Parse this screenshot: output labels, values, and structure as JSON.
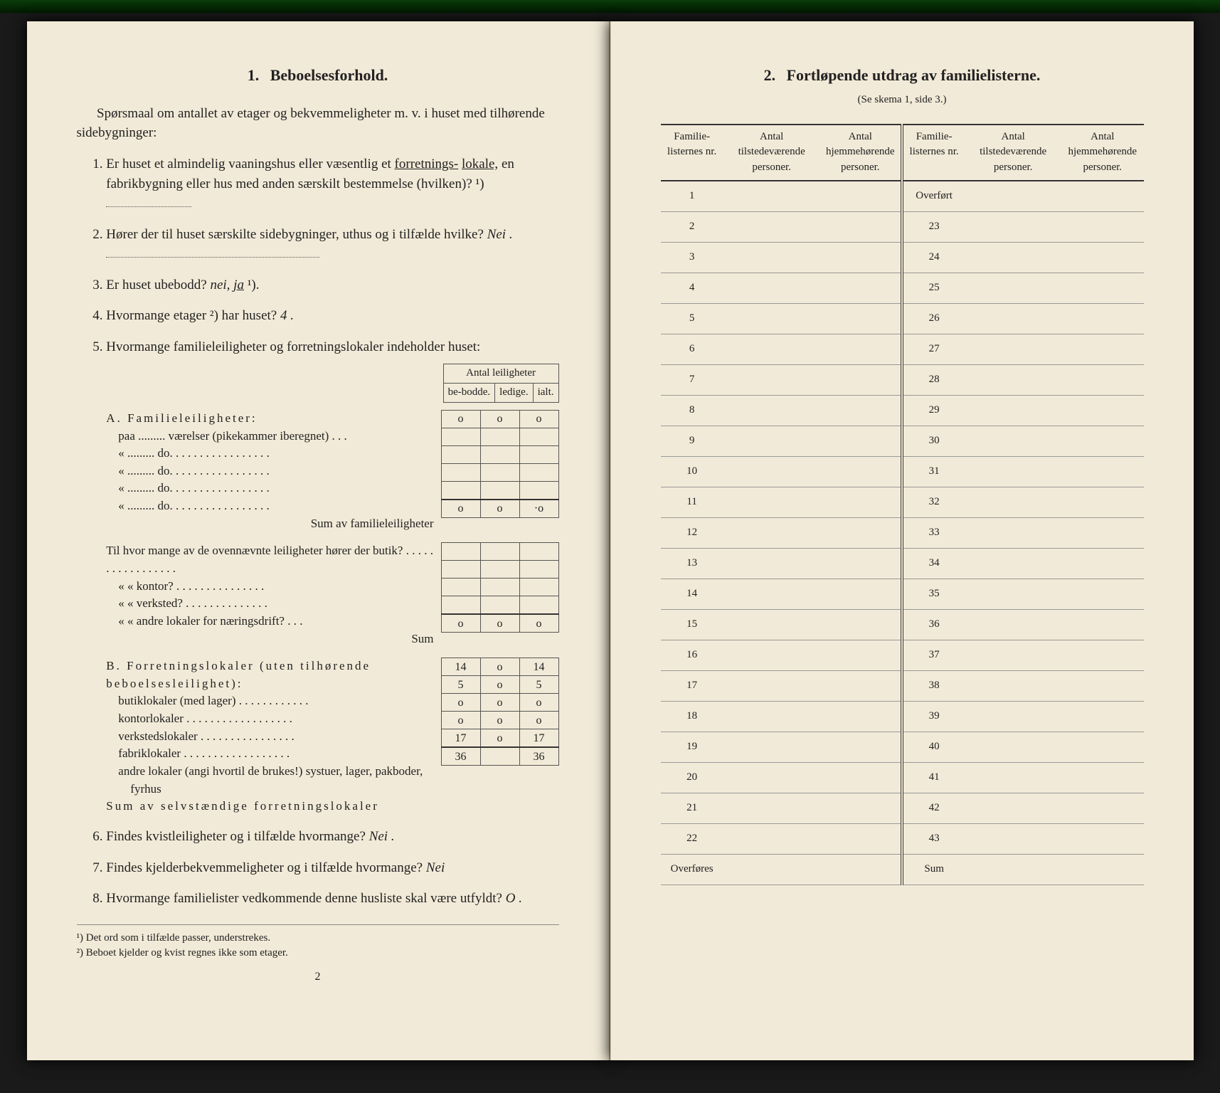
{
  "topbar_color_a": "#0a3d0a",
  "topbar_color_b": "#021a02",
  "page_bg": "#f2ead8",
  "left": {
    "section_num": "1.",
    "section_title": "Beboelsesforhold.",
    "intro": "Spørsmaal om antallet av etager og bekvemmeligheter m. v. i huset med tilhørende sidebygninger:",
    "q1": "Er huset et almindelig vaaningshus eller væsentlig et ",
    "q1_u1": "forretnings-",
    "q1_cont": " ",
    "q1_u2": "lokale,",
    "q1_tail": " en fabrikbygning eller hus med anden særskilt bestemmelse (hvilken)? ¹)",
    "q2": "Hører der til huset særskilte sidebygninger, uthus og i tilfælde hvilke? ",
    "q2_hand": "Nei .",
    "q3": "Er huset ubebodd? ",
    "q3_i": "nei, ",
    "q3_u": "ja",
    "q3_sup": " ¹).",
    "q4": "Hvormange etager ²) har huset? ",
    "q4_hand": "4 .",
    "q5": "Hvormange familieleiligheter og forretningslokaler indeholder huset:",
    "tbl_head": "Antal leiligheter",
    "tbl_c1": "be-bodde.",
    "tbl_c2": "ledige.",
    "tbl_c3": "ialt.",
    "A_title": "A. Familieleiligheter:",
    "A_r1": "paa ......... værelser (pikekammer iberegnet) . . .",
    "A_do": "«  .........   do.   . . . . . . . . . . . . . . . .",
    "A_sum": "Sum av familieleiligheter",
    "A_row_vals": [
      "o",
      "o",
      "o"
    ],
    "A_sum_vals": [
      "o",
      "o",
      "·o"
    ],
    "mid_q": "Til hvor mange av de ovennævnte leiligheter hører der butik? . . . . . . . . . . . . . . . . .",
    "mid_r2": "«    «   kontor? . . . . . . . . . . . . . . .",
    "mid_r3": "«    «   verksted? . . . . . . . . . . . . . .",
    "mid_r4": "«    «   andre lokaler for næringsdrift? . . .",
    "mid_sum": "Sum",
    "mid_sum_vals": [
      "o",
      "o",
      "o"
    ],
    "B_title": "B. Forretningslokaler (uten tilhørende beboelsesleilighet):",
    "B_rows": [
      {
        "label": "butiklokaler (med lager) . . . . . . . . . . . .",
        "v": [
          "14",
          "o",
          "14"
        ]
      },
      {
        "label": "kontorlokaler . . . . . . . . . . . . . . . . . .",
        "v": [
          "5",
          "o",
          "5"
        ]
      },
      {
        "label": "verkstedslokaler . . . . . . . . . . . . . . . .",
        "v": [
          "o",
          "o",
          "o"
        ]
      },
      {
        "label": "fabriklokaler . . . . . . . . . . . . . . . . . .",
        "v": [
          "o",
          "o",
          "o"
        ]
      },
      {
        "label": "andre lokaler (angi hvortil de brukes!) systuer, lager, pakboder, fyrhus",
        "v": [
          "17",
          "o",
          "17"
        ]
      }
    ],
    "B_sum": "Sum av selvstændige forretningslokaler",
    "B_sum_vals": [
      "36",
      "",
      "36"
    ],
    "q6": "Findes kvistleiligheter og i tilfælde hvormange? ",
    "q6_hand": "Nei .",
    "q7": "Findes kjelderbekvemmeligheter og i tilfælde hvormange? ",
    "q7_hand": "Nei",
    "q8": "Hvormange familielister vedkommende denne husliste skal være utfyldt? ",
    "q8_hand": "O .",
    "fn1": "¹) Det ord som i tilfælde passer, understrekes.",
    "fn2": "²) Beboet kjelder og kvist regnes ikke som etager.",
    "pagenum": "2"
  },
  "right": {
    "section_num": "2.",
    "section_title": "Fortløpende utdrag av familielisterne.",
    "subtitle": "(Se skema 1, side 3.)",
    "col1": "Familie-listernes nr.",
    "col2": "Antal tilstedeværende personer.",
    "col3": "Antal hjemmehørende personer.",
    "left_rows": [
      "1",
      "2",
      "3",
      "4",
      "5",
      "6",
      "7",
      "8",
      "9",
      "10",
      "11",
      "12",
      "13",
      "14",
      "15",
      "16",
      "17",
      "18",
      "19",
      "20",
      "21",
      "22",
      "Overføres"
    ],
    "right_rows": [
      "Overført",
      "23",
      "24",
      "25",
      "26",
      "27",
      "28",
      "29",
      "30",
      "31",
      "32",
      "33",
      "34",
      "35",
      "36",
      "37",
      "38",
      "39",
      "40",
      "41",
      "42",
      "43",
      "Sum"
    ]
  }
}
